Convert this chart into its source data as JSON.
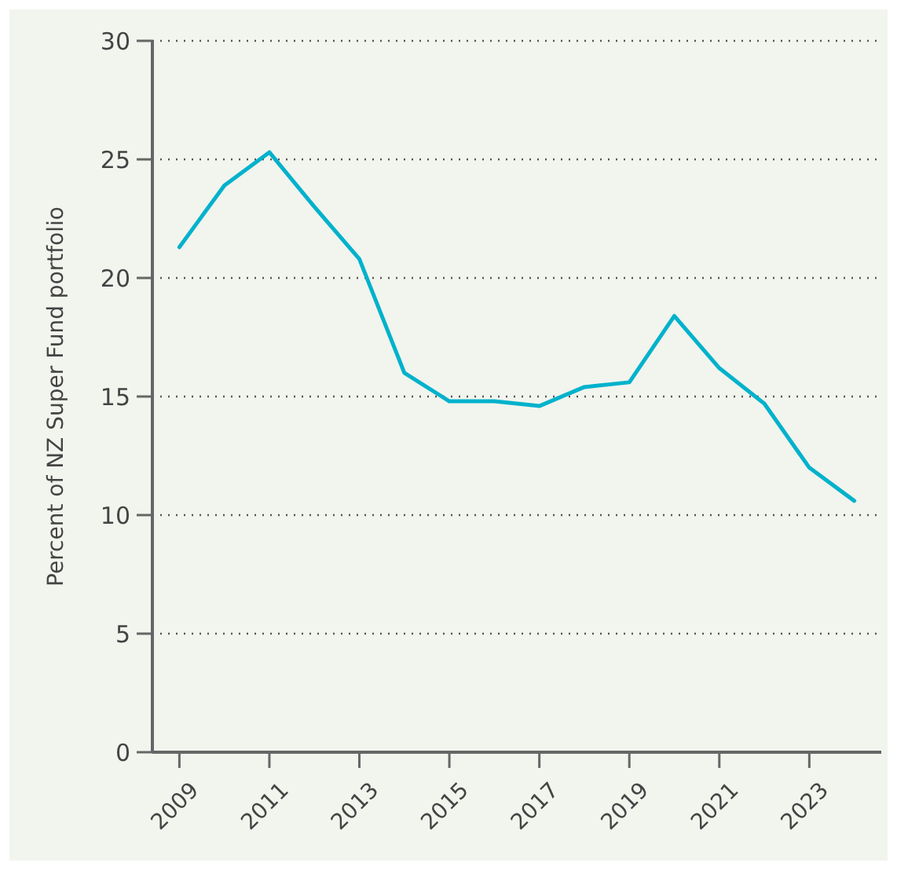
{
  "chart_data": {
    "type": "line",
    "ylabel": "Percent of NZ Super Fund portfolio",
    "x": [
      2009,
      2010,
      2011,
      2012,
      2013,
      2014,
      2015,
      2016,
      2017,
      2018,
      2019,
      2020,
      2021,
      2022,
      2023,
      2024
    ],
    "series": [
      {
        "color": "#00b2cc",
        "values": [
          21.3,
          23.9,
          25.3,
          23.0,
          20.8,
          16.0,
          14.8,
          14.8,
          14.6,
          15.4,
          15.6,
          18.4,
          16.2,
          14.7,
          12.0,
          10.6
        ]
      }
    ],
    "xlim": [
      2008.4,
      2024.6
    ],
    "xticks": [
      2009,
      2011,
      2013,
      2015,
      2017,
      2019,
      2021,
      2023
    ],
    "ylim": [
      0,
      30
    ],
    "yticks": [
      0,
      5,
      10,
      15,
      20,
      25,
      30
    ],
    "grid": "y",
    "marker": "none",
    "line_style": "solid"
  }
}
